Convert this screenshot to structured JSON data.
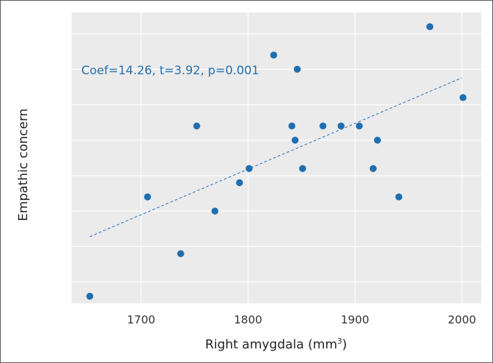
{
  "chart_data": {
    "type": "scatter",
    "title": "",
    "xlabel": "Right amygdala (mm",
    "xlabel_superscript": "3",
    "xlabel_suffix": ")",
    "ylabel": "Empathic concern",
    "xlim": [
      1635,
      2018
    ],
    "ylim": [
      0,
      20.5
    ],
    "x_ticks": [
      1700,
      1800,
      1900,
      2000
    ],
    "x_tick_labels": [
      "1700",
      "1800",
      "1900",
      "2000"
    ],
    "y_gridlines": [
      1.5,
      4,
      6.5,
      9,
      11.5,
      14,
      16.5,
      19
    ],
    "show_y_tick_labels": false,
    "grid": true,
    "points": [
      {
        "x": 1652,
        "y": 0.5
      },
      {
        "x": 1706,
        "y": 7.5
      },
      {
        "x": 1737,
        "y": 3.5
      },
      {
        "x": 1752,
        "y": 12.5
      },
      {
        "x": 1769,
        "y": 6.5
      },
      {
        "x": 1792,
        "y": 8.5
      },
      {
        "x": 1801,
        "y": 9.5
      },
      {
        "x": 1824,
        "y": 17.5
      },
      {
        "x": 1841,
        "y": 12.5
      },
      {
        "x": 1844,
        "y": 11.5
      },
      {
        "x": 1846,
        "y": 16.5
      },
      {
        "x": 1851,
        "y": 9.5
      },
      {
        "x": 1870,
        "y": 12.5
      },
      {
        "x": 1887,
        "y": 12.5
      },
      {
        "x": 1904,
        "y": 12.5
      },
      {
        "x": 1917,
        "y": 9.5
      },
      {
        "x": 1921,
        "y": 11.5
      },
      {
        "x": 1941,
        "y": 7.5
      },
      {
        "x": 1970,
        "y": 19.5
      },
      {
        "x": 2001,
        "y": 14.5
      }
    ],
    "trendline": {
      "x": [
        1652,
        2000
      ],
      "y": [
        4.7,
        15.9
      ],
      "style": "dashed"
    },
    "annotation": "Coef=14.26, t=3.92, p=0.001",
    "colors": {
      "point": "#1f6fb0",
      "trendline": "#2f74b8",
      "annotation": "#1f6fb0",
      "panel": "#ebebeb",
      "grid": "#ffffff"
    }
  }
}
